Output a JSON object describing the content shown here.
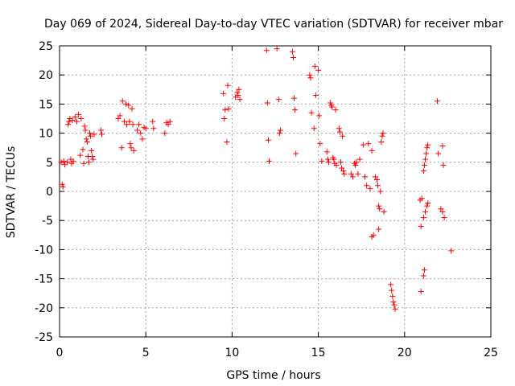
{
  "chart_data": {
    "type": "scatter",
    "title": "Day 069 of 2024, Sidereal Day-to-day VTEC variation (SDTVAR) for receiver mbar",
    "xlabel": "GPS time / hours",
    "ylabel": "SDTVAR / TECUs",
    "xlim": [
      0,
      25
    ],
    "ylim": [
      -25,
      25
    ],
    "xticks": [
      "0",
      "5",
      "10",
      "15",
      "20",
      "25"
    ],
    "yticks": [
      "25",
      "20",
      "15",
      "10",
      "5",
      "0",
      "-5",
      "-10",
      "-15",
      "-20",
      "-25"
    ],
    "grid": true,
    "marker": "+",
    "color": "#ff0000",
    "series": [
      {
        "name": "SDTVAR",
        "points": [
          [
            0.1,
            5.0
          ],
          [
            0.15,
            1.2
          ],
          [
            0.2,
            0.8
          ],
          [
            0.25,
            5.2
          ],
          [
            0.3,
            4.6
          ],
          [
            0.45,
            5.0
          ],
          [
            0.5,
            11.5
          ],
          [
            0.55,
            12.0
          ],
          [
            0.6,
            12.5
          ],
          [
            0.65,
            5.5
          ],
          [
            0.7,
            4.8
          ],
          [
            0.75,
            12.2
          ],
          [
            0.8,
            5.2
          ],
          [
            0.9,
            12.8
          ],
          [
            1.0,
            12.0
          ],
          [
            1.1,
            13.2
          ],
          [
            1.2,
            6.2
          ],
          [
            1.25,
            12.5
          ],
          [
            1.35,
            7.2
          ],
          [
            1.4,
            4.8
          ],
          [
            1.45,
            11.2
          ],
          [
            1.5,
            10.5
          ],
          [
            1.55,
            9.0
          ],
          [
            1.6,
            8.5
          ],
          [
            1.65,
            6.0
          ],
          [
            1.7,
            5.0
          ],
          [
            1.75,
            10.0
          ],
          [
            1.8,
            9.5
          ],
          [
            1.85,
            7.0
          ],
          [
            1.9,
            6.0
          ],
          [
            1.95,
            5.5
          ],
          [
            2.0,
            9.8
          ],
          [
            2.4,
            10.5
          ],
          [
            2.45,
            9.8
          ],
          [
            3.4,
            12.5
          ],
          [
            3.5,
            13.0
          ],
          [
            3.6,
            7.5
          ],
          [
            3.65,
            15.5
          ],
          [
            3.75,
            12.0
          ],
          [
            3.85,
            15.0
          ],
          [
            3.9,
            11.5
          ],
          [
            4.0,
            14.8
          ],
          [
            4.05,
            12.0
          ],
          [
            4.1,
            8.2
          ],
          [
            4.15,
            7.5
          ],
          [
            4.2,
            14.2
          ],
          [
            4.25,
            11.5
          ],
          [
            4.3,
            7.0
          ],
          [
            4.5,
            10.5
          ],
          [
            4.6,
            11.5
          ],
          [
            4.7,
            10.0
          ],
          [
            4.8,
            9.0
          ],
          [
            4.9,
            11.0
          ],
          [
            5.0,
            10.8
          ],
          [
            5.4,
            12.0
          ],
          [
            5.45,
            10.8
          ],
          [
            6.1,
            10.0
          ],
          [
            6.2,
            11.8
          ],
          [
            6.3,
            11.5
          ],
          [
            6.4,
            12.0
          ],
          [
            9.5,
            16.8
          ],
          [
            9.55,
            12.5
          ],
          [
            9.6,
            14.0
          ],
          [
            9.7,
            8.5
          ],
          [
            9.75,
            18.2
          ],
          [
            9.8,
            14.2
          ],
          [
            10.2,
            16.2
          ],
          [
            10.3,
            17.0
          ],
          [
            10.35,
            16.5
          ],
          [
            10.4,
            17.5
          ],
          [
            10.45,
            15.8
          ],
          [
            12.0,
            24.2
          ],
          [
            12.05,
            15.2
          ],
          [
            12.1,
            8.8
          ],
          [
            12.15,
            5.2
          ],
          [
            12.6,
            24.5
          ],
          [
            12.7,
            15.8
          ],
          [
            12.75,
            10.0
          ],
          [
            12.8,
            10.5
          ],
          [
            13.5,
            24.0
          ],
          [
            13.55,
            23.0
          ],
          [
            13.6,
            16.0
          ],
          [
            13.65,
            14.0
          ],
          [
            13.7,
            6.5
          ],
          [
            14.5,
            20.0
          ],
          [
            14.55,
            19.5
          ],
          [
            14.6,
            13.5
          ],
          [
            14.75,
            10.8
          ],
          [
            14.8,
            21.5
          ],
          [
            14.85,
            16.5
          ],
          [
            15.0,
            20.8
          ],
          [
            15.05,
            13.0
          ],
          [
            15.1,
            8.2
          ],
          [
            15.2,
            5.2
          ],
          [
            15.5,
            6.8
          ],
          [
            15.55,
            5.5
          ],
          [
            15.6,
            5.0
          ],
          [
            15.7,
            15.2
          ],
          [
            15.75,
            14.8
          ],
          [
            15.8,
            14.5
          ],
          [
            15.85,
            5.8
          ],
          [
            15.9,
            5.5
          ],
          [
            15.95,
            4.8
          ],
          [
            16.0,
            14.0
          ],
          [
            16.05,
            4.5
          ],
          [
            16.2,
            10.8
          ],
          [
            16.25,
            10.2
          ],
          [
            16.3,
            5.0
          ],
          [
            16.35,
            4.0
          ],
          [
            16.4,
            9.5
          ],
          [
            16.45,
            3.5
          ],
          [
            16.5,
            3.0
          ],
          [
            16.9,
            3.0
          ],
          [
            17.0,
            2.5
          ],
          [
            17.1,
            4.8
          ],
          [
            17.15,
            4.5
          ],
          [
            17.2,
            5.0
          ],
          [
            17.3,
            3.0
          ],
          [
            17.4,
            5.5
          ],
          [
            17.6,
            8.0
          ],
          [
            17.7,
            2.5
          ],
          [
            17.8,
            1.0
          ],
          [
            17.9,
            8.2
          ],
          [
            18.0,
            0.5
          ],
          [
            18.1,
            7.0
          ],
          [
            18.3,
            2.5
          ],
          [
            18.4,
            2.0
          ],
          [
            18.45,
            1.0
          ],
          [
            18.5,
            -2.5
          ],
          [
            18.55,
            -3.0
          ],
          [
            18.6,
            0.0
          ],
          [
            18.65,
            8.5
          ],
          [
            18.7,
            9.5
          ],
          [
            18.75,
            10.0
          ],
          [
            18.8,
            -3.5
          ],
          [
            18.5,
            -6.5
          ],
          [
            18.1,
            -7.8
          ],
          [
            18.2,
            -7.5
          ],
          [
            19.2,
            -16.0
          ],
          [
            19.25,
            -17.0
          ],
          [
            19.3,
            -18.0
          ],
          [
            19.35,
            -19.0
          ],
          [
            19.4,
            -19.5
          ],
          [
            19.45,
            -20.2
          ],
          [
            20.9,
            -1.5
          ],
          [
            20.95,
            -6.0
          ],
          [
            21.0,
            -1.2
          ],
          [
            20.95,
            -17.2
          ],
          [
            21.1,
            3.5
          ],
          [
            21.15,
            4.5
          ],
          [
            21.2,
            5.5
          ],
          [
            21.25,
            6.5
          ],
          [
            21.3,
            7.5
          ],
          [
            21.35,
            8.0
          ],
          [
            21.1,
            -4.5
          ],
          [
            21.2,
            -3.5
          ],
          [
            21.3,
            -2.5
          ],
          [
            21.35,
            -2.0
          ],
          [
            21.15,
            -13.5
          ],
          [
            21.1,
            -14.5
          ],
          [
            21.9,
            15.5
          ],
          [
            21.95,
            6.5
          ],
          [
            22.2,
            7.8
          ],
          [
            22.25,
            4.5
          ],
          [
            22.1,
            -3.0
          ],
          [
            22.2,
            -3.5
          ],
          [
            22.3,
            -4.5
          ],
          [
            22.7,
            -10.2
          ]
        ]
      }
    ]
  }
}
